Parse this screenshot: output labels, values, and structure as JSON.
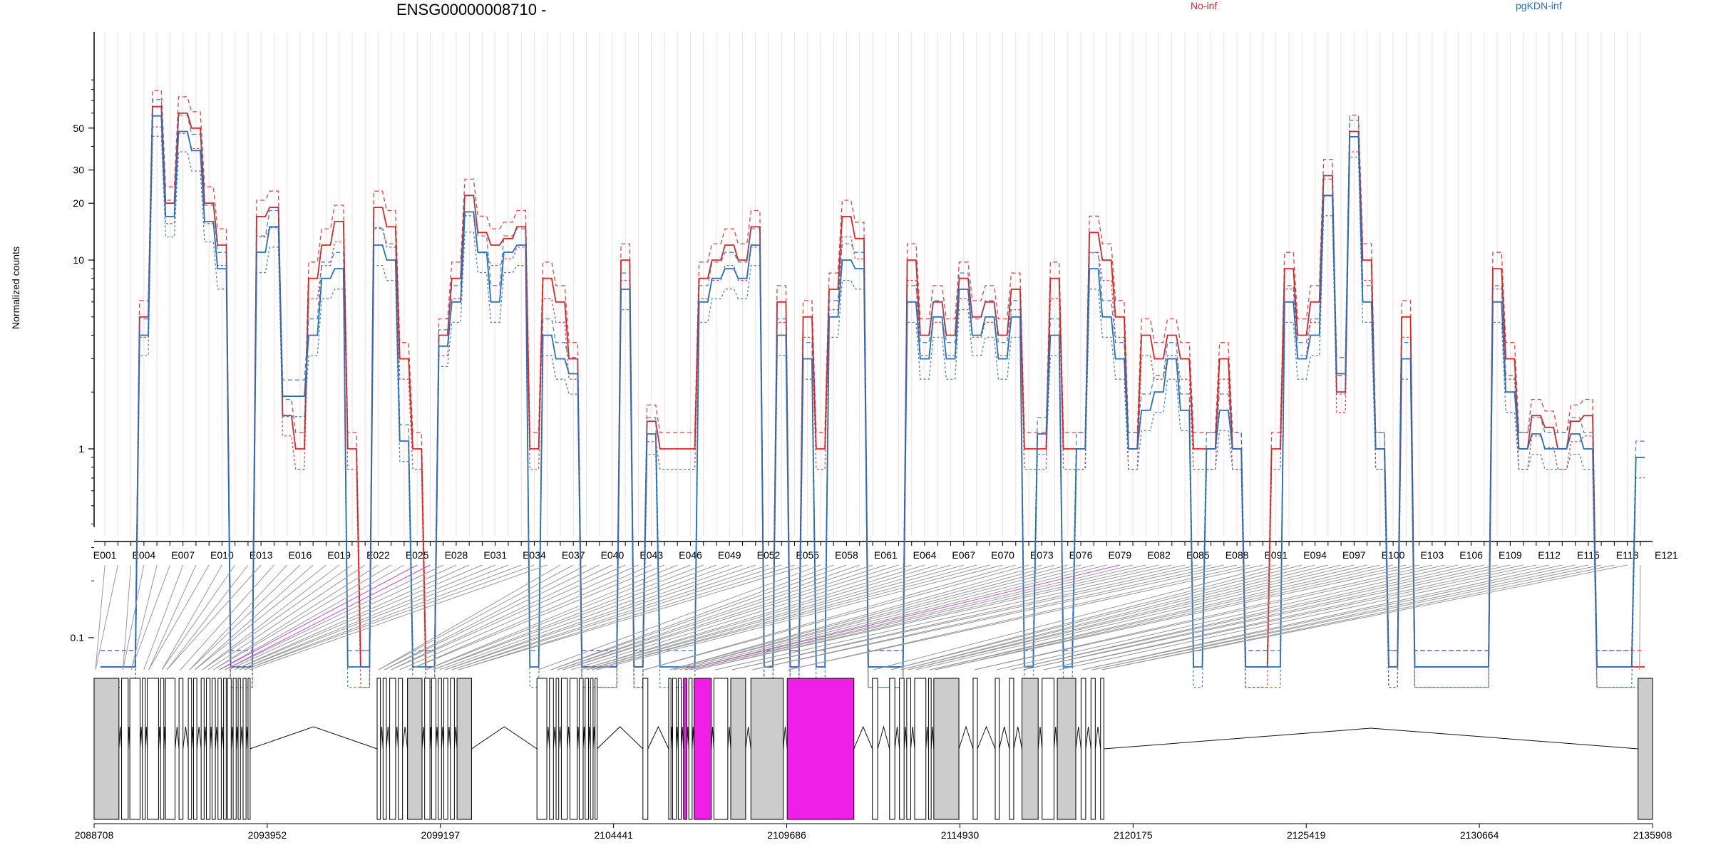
{
  "chart_data": {
    "type": "line",
    "title": "ENSG00000008710 -",
    "ylabel": "Normalized counts",
    "yscale": "log",
    "yticks": [
      "0.1",
      "1",
      "10",
      "20",
      "30",
      "50"
    ],
    "legend": {
      "placement": "top",
      "entries": [
        {
          "name": "No-inf",
          "color": "#d62728"
        },
        {
          "name": "pgKDN-inf",
          "color": "#2b6fb6"
        }
      ]
    },
    "exon_ticks": [
      "E001",
      "E004",
      "E007",
      "E010",
      "E013",
      "E016",
      "E019",
      "E022",
      "E025",
      "E028",
      "E031",
      "E034",
      "E037",
      "E040",
      "E043",
      "E046",
      "E049",
      "E052",
      "E055",
      "E058",
      "E061",
      "E064",
      "E067",
      "E070",
      "E073",
      "E076",
      "E079",
      "E082",
      "E085",
      "E088",
      "E091",
      "E094",
      "E097",
      "E100",
      "E103",
      "E106",
      "E109",
      "E112",
      "E115",
      "E118",
      "E121"
    ],
    "series": [
      {
        "name": "No-inf",
        "color": "#d62728",
        "values": [
          0.07,
          0.07,
          0.07,
          5,
          65,
          20,
          60,
          50,
          20,
          12,
          0.07,
          0.07,
          17,
          19,
          1.5,
          1,
          8,
          12,
          16,
          1,
          0.07,
          19,
          15,
          3,
          1,
          0.07,
          4,
          8,
          22,
          14,
          12,
          13,
          15,
          1,
          8,
          6,
          3,
          0.07,
          0.07,
          0.07,
          10,
          0.07,
          1.4,
          1,
          1,
          1,
          8,
          10,
          12,
          10,
          15,
          0.07,
          6,
          0.07,
          5,
          1,
          7,
          17,
          13,
          0.07,
          0.07,
          0.07,
          10,
          4,
          6,
          4,
          8,
          5,
          6,
          4,
          7,
          1,
          1,
          8,
          1,
          1,
          14,
          10,
          5,
          1,
          4,
          3,
          4,
          3,
          1,
          1,
          3,
          1,
          0.07,
          0.07,
          1,
          9,
          4,
          6,
          28,
          2,
          48,
          10,
          1,
          0.07,
          5,
          0.07,
          0.07,
          0.07,
          0.07,
          0.07,
          0.07,
          9,
          3,
          1,
          1.5,
          1.3,
          1,
          1.4,
          1.5,
          0.07,
          0.07,
          0.07,
          0.07
        ]
      },
      {
        "name": "pgKDN-inf",
        "color": "#2b6fb6",
        "values": [
          0.07,
          0.07,
          0.07,
          4,
          58,
          17,
          48,
          38,
          16,
          9,
          0.07,
          0.07,
          11,
          15,
          1.9,
          1.9,
          4,
          8,
          9,
          0.07,
          0.07,
          12,
          10,
          1.1,
          0.07,
          0.07,
          3.5,
          6,
          18,
          11,
          6,
          11,
          12,
          0.07,
          4,
          3,
          2.5,
          0.07,
          0.07,
          0.07,
          7,
          0.07,
          1.2,
          0.07,
          0.07,
          0.07,
          6,
          8,
          9,
          8,
          12,
          0.07,
          4,
          0.07,
          3,
          0.07,
          5,
          10,
          9,
          0.07,
          0.07,
          0.07,
          6,
          3,
          5,
          3,
          7,
          4,
          5,
          3,
          5,
          0.07,
          1.2,
          4,
          0.07,
          1,
          9,
          5,
          3,
          1,
          1.6,
          2,
          3,
          1.6,
          0.07,
          1,
          1.6,
          1,
          0.07,
          0.07,
          0.07,
          6,
          3,
          4,
          22,
          2.5,
          45,
          6,
          1,
          0.07,
          3,
          0.07,
          0.07,
          0.07,
          0.07,
          0.07,
          0.07,
          6,
          2,
          1,
          1.2,
          1,
          1,
          1.2,
          1,
          0.07,
          0.07,
          0.07,
          0.9
        ]
      }
    ],
    "gene_model": {
      "coordinate_ticks": [
        "2088708",
        "2093952",
        "2099197",
        "2104441",
        "2109686",
        "2114930",
        "2120175",
        "2125419",
        "2130664",
        "2135908"
      ],
      "range": [
        2088708,
        2135908
      ],
      "exon_color": "#cccccc",
      "highlight_color": "#f01fe8",
      "highlighted_exons": [
        "E025",
        "E026",
        "E079"
      ]
    }
  }
}
